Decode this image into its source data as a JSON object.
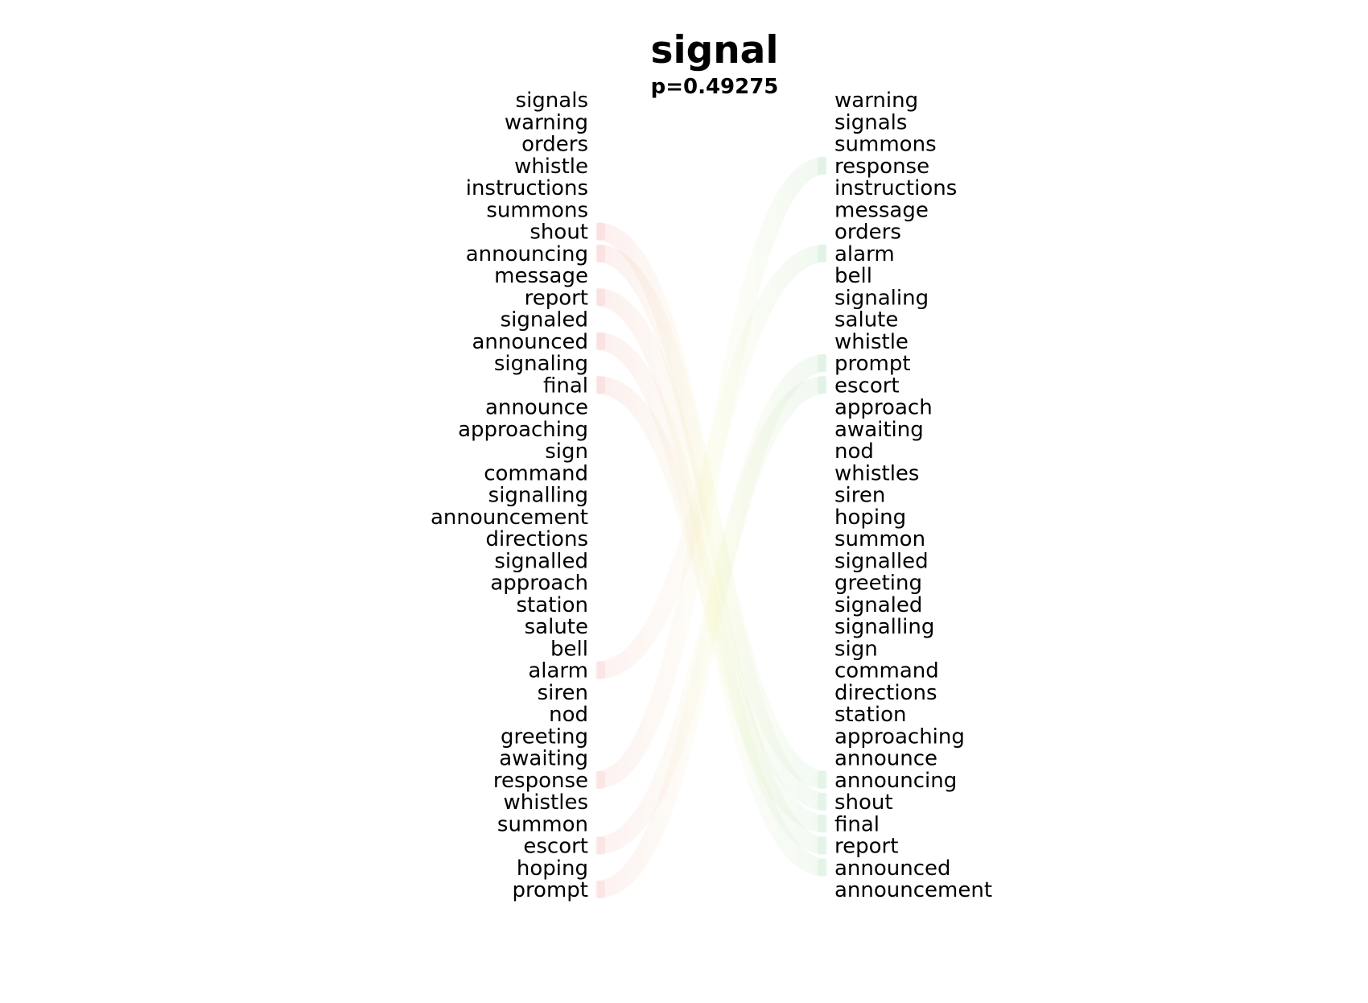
{
  "chart_data": {
    "type": "bump",
    "title": "signal",
    "subtitle": "p=0.49275",
    "left_words": [
      "signals",
      "warning",
      "orders",
      "whistle",
      "instructions",
      "summons",
      "shout",
      "announcing",
      "message",
      "report",
      "signaled",
      "announced",
      "signaling",
      "final",
      "announce",
      "approaching",
      "sign",
      "command",
      "signalling",
      "announcement",
      "directions",
      "signalled",
      "approach",
      "station",
      "salute",
      "bell",
      "alarm",
      "siren",
      "nod",
      "greeting",
      "awaiting",
      "response",
      "whistles",
      "summon",
      "escort",
      "hoping",
      "prompt"
    ],
    "right_words": [
      "warning",
      "signals",
      "summons",
      "response",
      "instructions",
      "message",
      "orders",
      "alarm",
      "bell",
      "signaling",
      "salute",
      "whistle",
      "prompt",
      "escort",
      "approach",
      "awaiting",
      "nod",
      "whistles",
      "siren",
      "hoping",
      "summon",
      "signalled",
      "greeting",
      "signaled",
      "signalling",
      "sign",
      "command",
      "directions",
      "station",
      "approaching",
      "announce",
      "announcing",
      "shout",
      "final",
      "report",
      "announced",
      "announcement"
    ],
    "highlighted_left": [
      "shout",
      "announcing",
      "report",
      "announced",
      "final",
      "alarm",
      "response",
      "escort",
      "prompt"
    ],
    "highlighted_right": [
      "response",
      "alarm",
      "prompt",
      "escort",
      "announcing",
      "shout",
      "final",
      "report",
      "announced"
    ],
    "colors": {
      "drop": "#e87878",
      "rise": "#7ac68a",
      "mid": "#ecec90",
      "text": "#000000"
    }
  }
}
